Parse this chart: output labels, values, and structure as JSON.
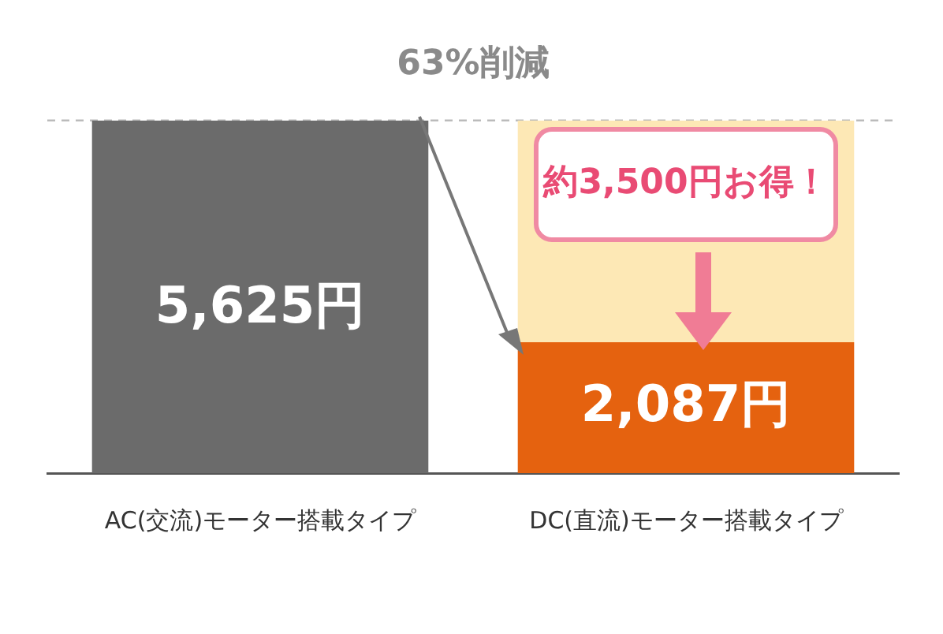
{
  "chart_data": {
    "type": "bar",
    "title": "63%削減",
    "categories": [
      "AC(交流)モーター搭載タイプ",
      "DC(直流)モーター搭載タイプ"
    ],
    "stacked": true,
    "series": [
      {
        "colors": [
          "#6b6b6b",
          "#e5620f"
        ],
        "values": [
          5625,
          2087
        ],
        "value_labels": [
          "5,625円",
          "2,087円"
        ]
      },
      {
        "color": "#fde8b5",
        "values": [
          null,
          3538
        ]
      }
    ],
    "ref_lines": [
      {
        "axis": "y",
        "value": 5625,
        "color": "#bbbbbb",
        "line_style": "dashed"
      }
    ],
    "annotations": [
      "約3,500円お得！"
    ],
    "grid": false,
    "legend": false
  }
}
